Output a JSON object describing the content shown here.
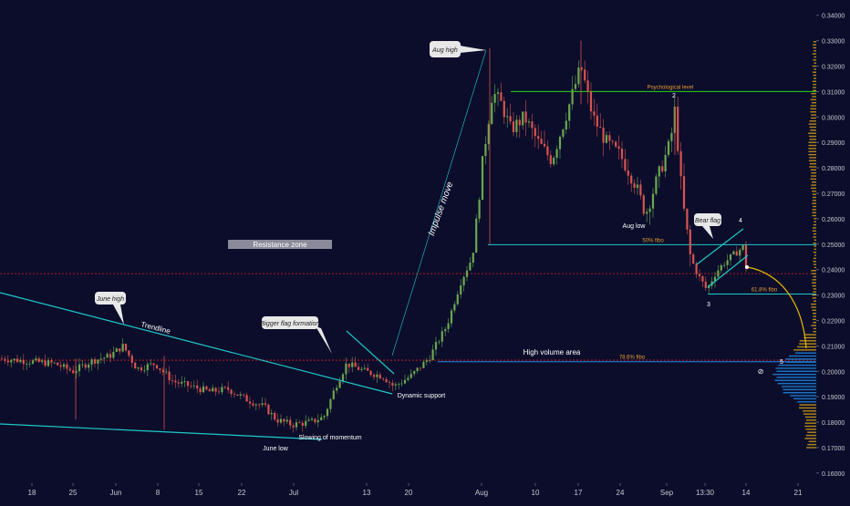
{
  "chart_data": {
    "type": "candlestick",
    "x_ticks": [
      "18",
      "25",
      "Jun",
      "8",
      "15",
      "22",
      "Jul",
      "13",
      "20",
      "Aug",
      "10",
      "17",
      "24",
      "Sep",
      "13:30",
      "14",
      "21"
    ],
    "y_ticks": [
      "0.34000",
      "0.33000",
      "0.32000",
      "0.31000",
      "0.30000",
      "0.29000",
      "0.28000",
      "0.27000",
      "0.26000",
      "0.25000",
      "0.24000",
      "0.23000",
      "0.22000",
      "0.21000",
      "0.20000",
      "0.19000",
      "0.18000",
      "0.17000",
      "0.16000"
    ],
    "ylim": [
      0.156,
      0.346
    ],
    "price_levels": [
      {
        "value": "0.31000",
        "price": 0.31,
        "color": "#23d81b",
        "label": "Psychological level"
      },
      {
        "value": "0.24981",
        "price": 0.24981,
        "color": "#1fc9c9",
        "label": "50% fibo"
      },
      {
        "value": "0.23840",
        "price": 0.2384,
        "color": "#e0201c",
        "label": ""
      },
      {
        "value": "0.23039",
        "price": 0.23039,
        "color": "#1fc9c9",
        "label": "61.8% fibo"
      },
      {
        "value": "0.20438",
        "price": 0.20438,
        "color": "#e0201c",
        "label": "High volume area"
      },
      {
        "value": "0.20377",
        "price": 0.20377,
        "color": "#1e88e5",
        "label": "78.6% fibo"
      }
    ],
    "annotations": {
      "resistance_zone": "Resistance zone",
      "impulse_move": "Impulse move",
      "trendline": "Trendline",
      "june_high": "June high",
      "june_low": "June low",
      "slowing": "Slowing of momentum",
      "bigger_flag": "Bigger flag formation",
      "dynamic_support": "Dynamic support",
      "aug_high": "Aug high",
      "aug_low": "Aug low",
      "bear_flag": "Bear flag",
      "wave_2": "2",
      "wave_3": "3",
      "wave_4": "4",
      "wave_5": "5",
      "icon": "⊘"
    },
    "colors": {
      "bull": "#6aa84f",
      "bear": "#d9534f",
      "volume_profile": "#d4a017"
    }
  }
}
